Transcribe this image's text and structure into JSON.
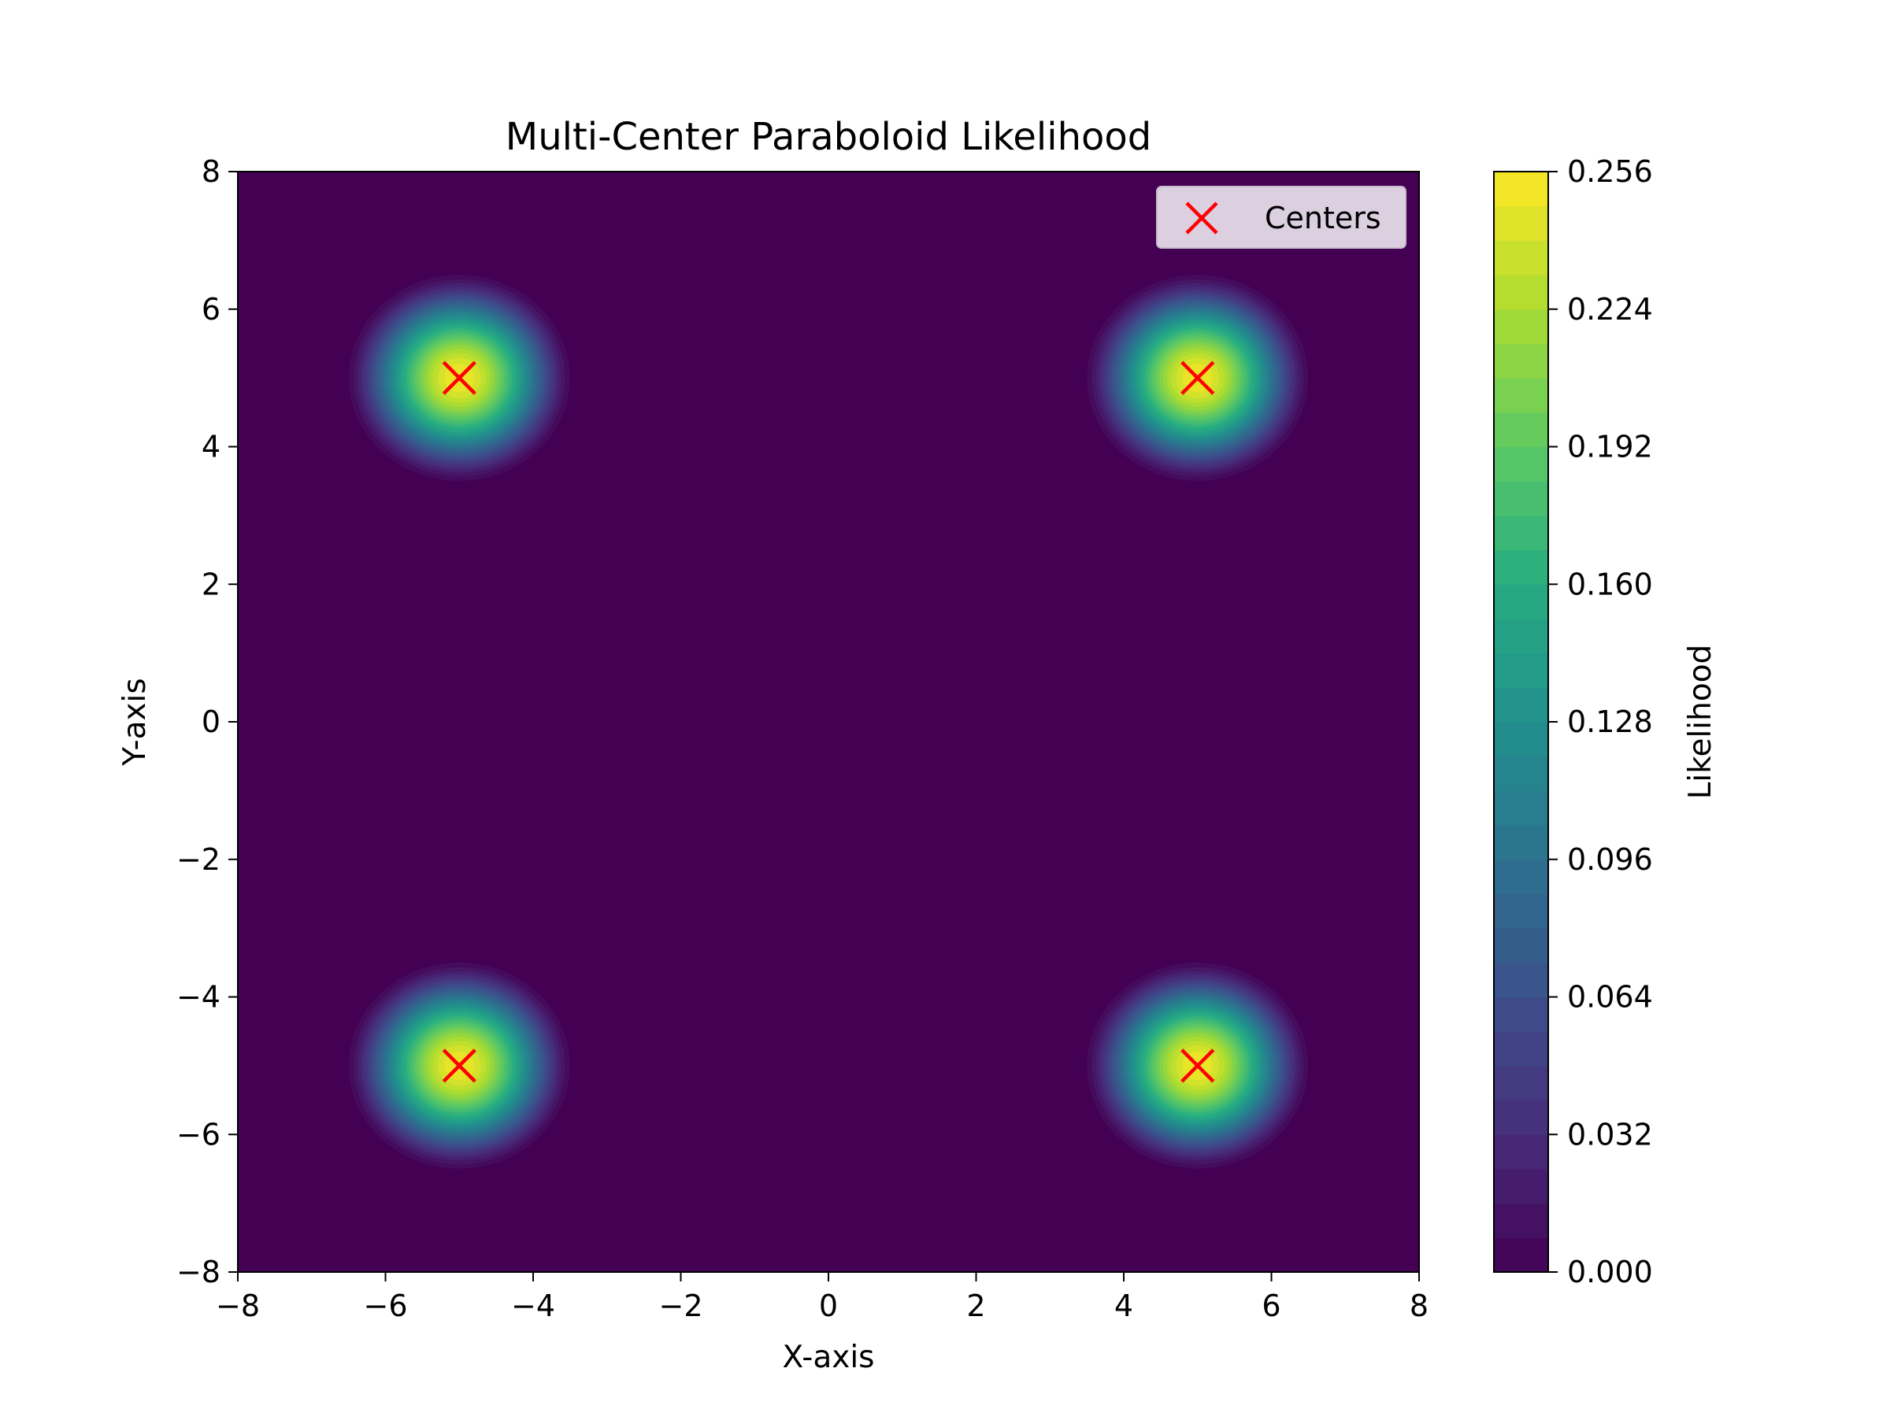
{
  "chart_data": {
    "type": "heatmap",
    "subtype": "filled-contour",
    "title": "Multi-Center Paraboloid Likelihood",
    "xlabel": "X-axis",
    "ylabel": "Y-axis",
    "xlim": [
      -8,
      8
    ],
    "ylim": [
      -8,
      8
    ],
    "x_ticks": [
      -8,
      -6,
      -4,
      -2,
      0,
      2,
      4,
      6,
      8
    ],
    "y_ticks": [
      -8,
      -6,
      -4,
      -2,
      0,
      2,
      4,
      6,
      8
    ],
    "x_tick_labels": [
      "−8",
      "−6",
      "−4",
      "−2",
      "0",
      "2",
      "4",
      "6",
      "8"
    ],
    "y_tick_labels": [
      "−8",
      "−6",
      "−4",
      "−2",
      "0",
      "2",
      "4",
      "6",
      "8"
    ],
    "grid": false,
    "colormap": "viridis",
    "background_color": "#440154",
    "centers": [
      {
        "x": -5,
        "y": 5
      },
      {
        "x": 5,
        "y": 5
      },
      {
        "x": -5,
        "y": -5
      },
      {
        "x": 5,
        "y": -5
      }
    ],
    "peak_value": 0.256,
    "blob_extent_radius": 1.65,
    "marker": {
      "shape": "x",
      "color": "#ff0000"
    },
    "legend": {
      "position": "top-right",
      "entries": [
        {
          "label": "Centers",
          "marker": "x",
          "color": "#ff0000"
        }
      ]
    },
    "colorbar": {
      "label": "Likelihood",
      "vmin": 0.0,
      "vmax": 0.256,
      "levels": 32,
      "ticks": [
        0.0,
        0.032,
        0.064,
        0.096,
        0.128,
        0.16,
        0.192,
        0.224,
        0.256
      ],
      "tick_labels": [
        "0.000",
        "0.032",
        "0.064",
        "0.096",
        "0.128",
        "0.160",
        "0.192",
        "0.224",
        "0.256"
      ]
    }
  }
}
